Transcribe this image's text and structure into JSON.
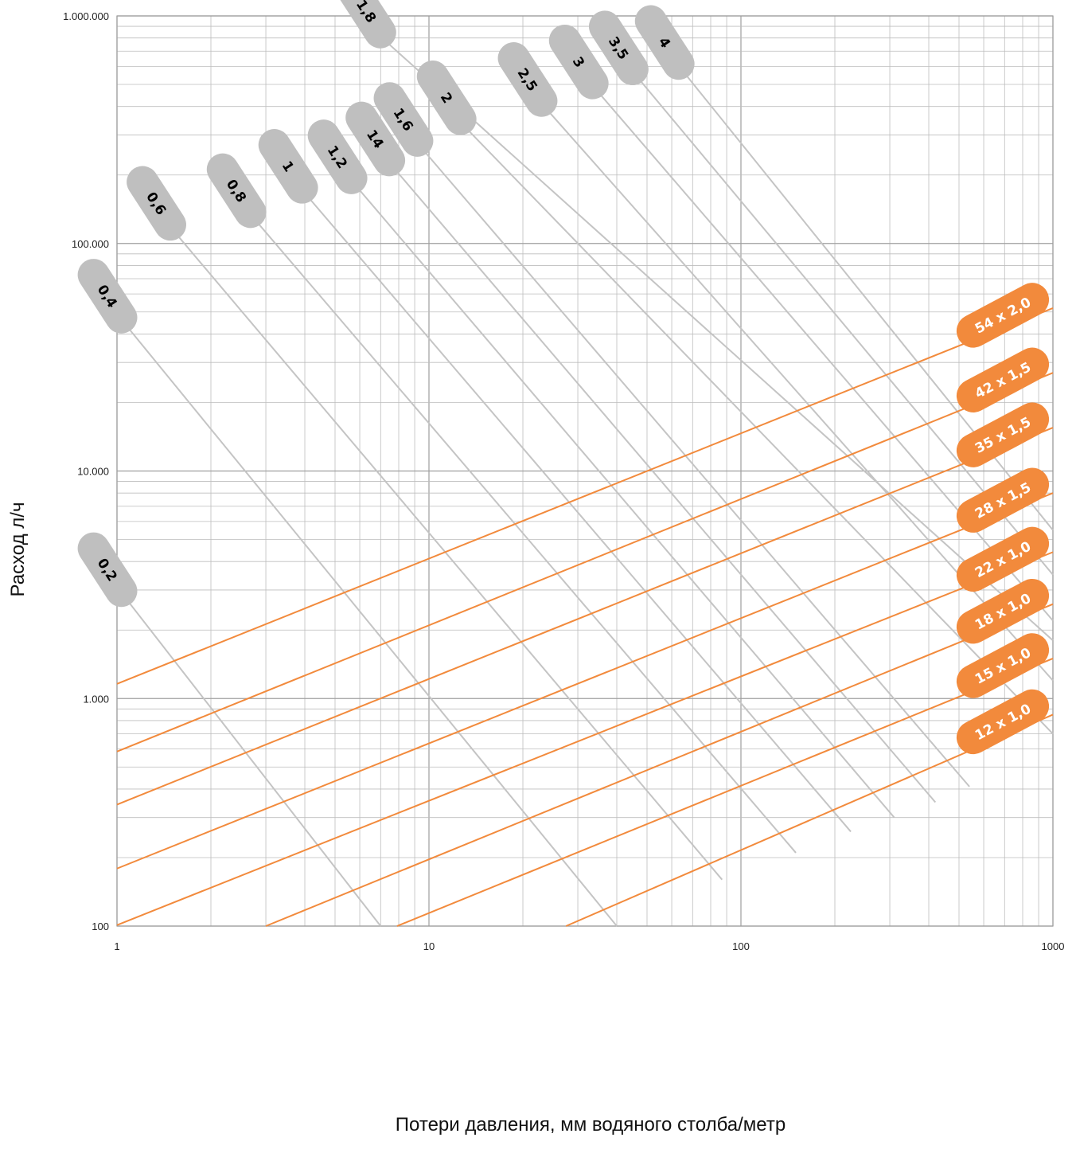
{
  "chart_data": {
    "type": "line",
    "title": "",
    "xlabel": "Потери давления, мм водяного столба/метр",
    "ylabel": "Расход л/ч",
    "x_scale": "log",
    "y_scale": "log",
    "xlim": [
      1,
      1000
    ],
    "ylim": [
      100,
      1000000
    ],
    "grid": true,
    "x_ticks": [
      {
        "value": 1,
        "label": "1"
      },
      {
        "value": 10,
        "label": "10"
      },
      {
        "value": 100,
        "label": "100"
      },
      {
        "value": 1000,
        "label": "1000"
      }
    ],
    "y_ticks": [
      {
        "value": 100,
        "label": "100"
      },
      {
        "value": 1000,
        "label": "1.000"
      },
      {
        "value": 10000,
        "label": "10.000"
      },
      {
        "value": 100000,
        "label": "100.000"
      },
      {
        "value": 1000000,
        "label": "1.000.000"
      }
    ],
    "colors": {
      "pipe": "#f28a3c",
      "velocity": "#c4c4c4",
      "grid": "#bdbdbd"
    },
    "pipe_series": [
      {
        "name": "54 x 2,0",
        "label_main": "54 x ",
        "label_bold": "2,0",
        "x": [
          1,
          1000
        ],
        "y": [
          1160,
          52000
        ]
      },
      {
        "name": "42 x 1,5",
        "label_main": "42 x 1,5",
        "label_bold": "",
        "x": [
          1,
          1000
        ],
        "y": [
          585,
          27000
        ]
      },
      {
        "name": "35 x 1,5",
        "label_main": "35 x 1,5",
        "label_bold": "",
        "x": [
          1,
          1000
        ],
        "y": [
          342,
          15500
        ]
      },
      {
        "name": "28 x 1,5",
        "label_main": "28 x 1,5",
        "label_bold": "",
        "x": [
          1,
          1000
        ],
        "y": [
          179,
          8000
        ]
      },
      {
        "name": "22 x 1,0",
        "label_main": "22 x 1,0",
        "label_bold": "",
        "x": [
          1,
          1000
        ],
        "y": [
          101,
          4400
        ]
      },
      {
        "name": "18 x 1,0",
        "label_main": "18 x 1,0",
        "label_bold": "",
        "x": [
          3,
          1000
        ],
        "y": [
          100,
          2600
        ]
      },
      {
        "name": "15 x 1,0",
        "label_main": "15 x 1,0",
        "label_bold": "",
        "x": [
          7.9,
          1000
        ],
        "y": [
          100,
          1500
        ]
      },
      {
        "name": "12 x 1,0",
        "label_main": "12 x 1,0",
        "label_bold": "",
        "x": [
          27.5,
          1000
        ],
        "y": [
          100,
          850
        ]
      }
    ],
    "velocity_series": [
      {
        "name": "0,2",
        "x": [
          1.08,
          7.0
        ],
        "y": [
          2700,
          100
        ]
      },
      {
        "name": "0,4",
        "x": [
          1.08,
          40.0
        ],
        "y": [
          43000,
          100
        ]
      },
      {
        "name": "0,6",
        "x": [
          1.55,
          87.0
        ],
        "y": [
          110000,
          160
        ]
      },
      {
        "name": "0,8",
        "x": [
          2.8,
          150.0
        ],
        "y": [
          125000,
          210
        ]
      },
      {
        "name": "1",
        "x": [
          4.1,
          225.0
        ],
        "y": [
          160000,
          260
        ]
      },
      {
        "name": "1,2",
        "x": [
          5.9,
          310.0
        ],
        "y": [
          176000,
          300
        ]
      },
      {
        "name": "14",
        "x": [
          7.8,
          420.0
        ],
        "y": [
          211000,
          350
        ]
      },
      {
        "name": "1,6",
        "x": [
          9.6,
          540.0
        ],
        "y": [
          257000,
          410
        ]
      },
      {
        "name": "1,8",
        "x": [
          7.3,
          1000.0
        ],
        "y": [
          770000,
          1800
        ]
      },
      {
        "name": "2",
        "x": [
          13.2,
          1000.0
        ],
        "y": [
          320000,
          700
        ]
      },
      {
        "name": "2,5",
        "x": [
          24.0,
          1000.0
        ],
        "y": [
          385000,
          1200
        ]
      },
      {
        "name": "3",
        "x": [
          35.0,
          1000.0
        ],
        "y": [
          460000,
          2200
        ]
      },
      {
        "name": "3,5",
        "x": [
          47.0,
          1000.0
        ],
        "y": [
          530000,
          3500
        ]
      },
      {
        "name": "4",
        "x": [
          66.0,
          1000.0
        ],
        "y": [
          560000,
          5500
        ]
      }
    ]
  }
}
